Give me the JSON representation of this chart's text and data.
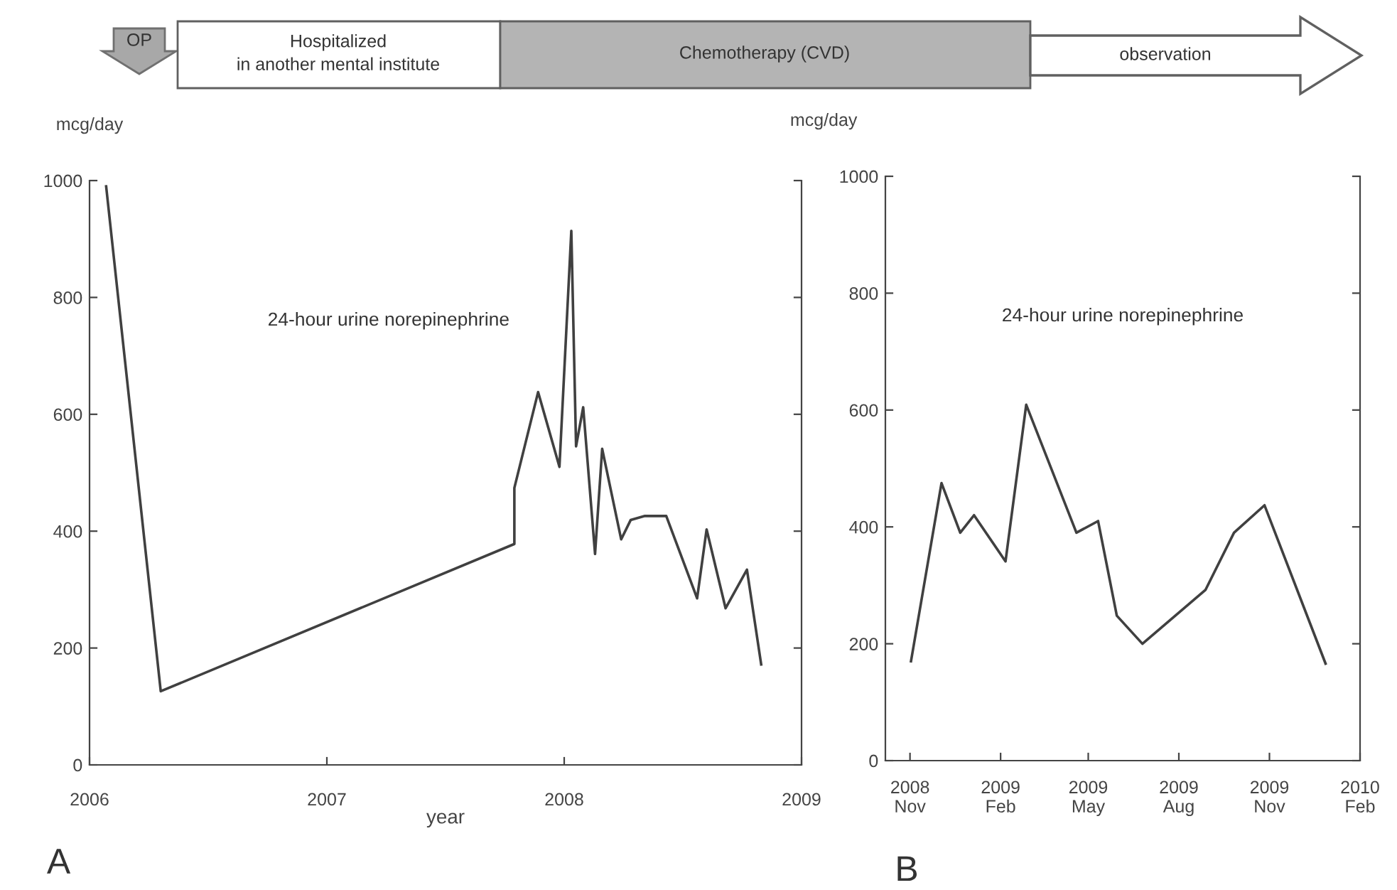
{
  "chart_data": [
    {
      "type": "other",
      "annotations": [
        "OP",
        "Hospitalized\nin another mental institute",
        "Chemotherapy (CVD)",
        "observation"
      ]
    },
    {
      "type": "line",
      "xlabel": "year",
      "ylabel": "mcg/day",
      "annotations": [
        "24-hour urine norepinephrine",
        "A"
      ],
      "x": [
        2006.07,
        2006.3,
        2007.79,
        2007.79,
        2007.89,
        2007.98,
        2008.03,
        2008.05,
        2008.08,
        2008.13,
        2008.16,
        2008.24,
        2008.28,
        2008.34,
        2008.43,
        2008.56,
        2008.6,
        2008.68,
        2008.77,
        2008.83
      ],
      "series": [
        {
          "color": "#404040",
          "values": [
            990,
            126,
            378,
            474,
            638,
            510,
            914,
            545,
            612,
            361,
            541,
            386,
            419,
            426,
            426,
            285,
            403,
            268,
            334,
            172
          ]
        }
      ],
      "xlim": [
        2006,
        2009
      ],
      "xticks": [
        2006,
        2007,
        2008,
        2009
      ],
      "ylim": [
        0,
        1000
      ],
      "yticks": [
        0,
        200,
        400,
        600,
        800,
        1000
      ],
      "grid": false,
      "legend": false,
      "marker": "none",
      "line_style": "solid"
    },
    {
      "type": "line",
      "ylabel": "mcg/day",
      "annotations": [
        "24-hour urine norepinephrine",
        "B"
      ],
      "x": [
        "2008-11-02",
        "2008-12-03",
        "2008-12-22",
        "2009-01-05",
        "2009-02-06",
        "2009-02-27",
        "2009-04-19",
        "2009-05-11",
        "2009-05-30",
        "2009-06-25",
        "2009-08-28",
        "2009-09-26",
        "2009-10-27",
        "2009-12-28"
      ],
      "series": [
        {
          "color": "#404040",
          "values": [
            170,
            475,
            390,
            420,
            341,
            609,
            390,
            410,
            248,
            200,
            292,
            390,
            437,
            166
          ]
        }
      ],
      "xlim": [
        "2008-10-07",
        "2010-02-01"
      ],
      "xticks": [
        {
          "value": "2008-11-01",
          "label": "2008\nNov"
        },
        {
          "value": "2009-02-01",
          "label": "2009\nFeb"
        },
        {
          "value": "2009-05-01",
          "label": "2009\nMay"
        },
        {
          "value": "2009-08-01",
          "label": "2009\nAug"
        },
        {
          "value": "2009-11-01",
          "label": "2009\nNov"
        },
        {
          "value": "2010-02-01",
          "label": "2010\nFeb"
        }
      ],
      "ylim": [
        0,
        1000
      ],
      "yticks": [
        0,
        200,
        400,
        600,
        800,
        1000
      ],
      "grid": false,
      "legend": false,
      "marker": "none",
      "line_style": "solid"
    }
  ]
}
